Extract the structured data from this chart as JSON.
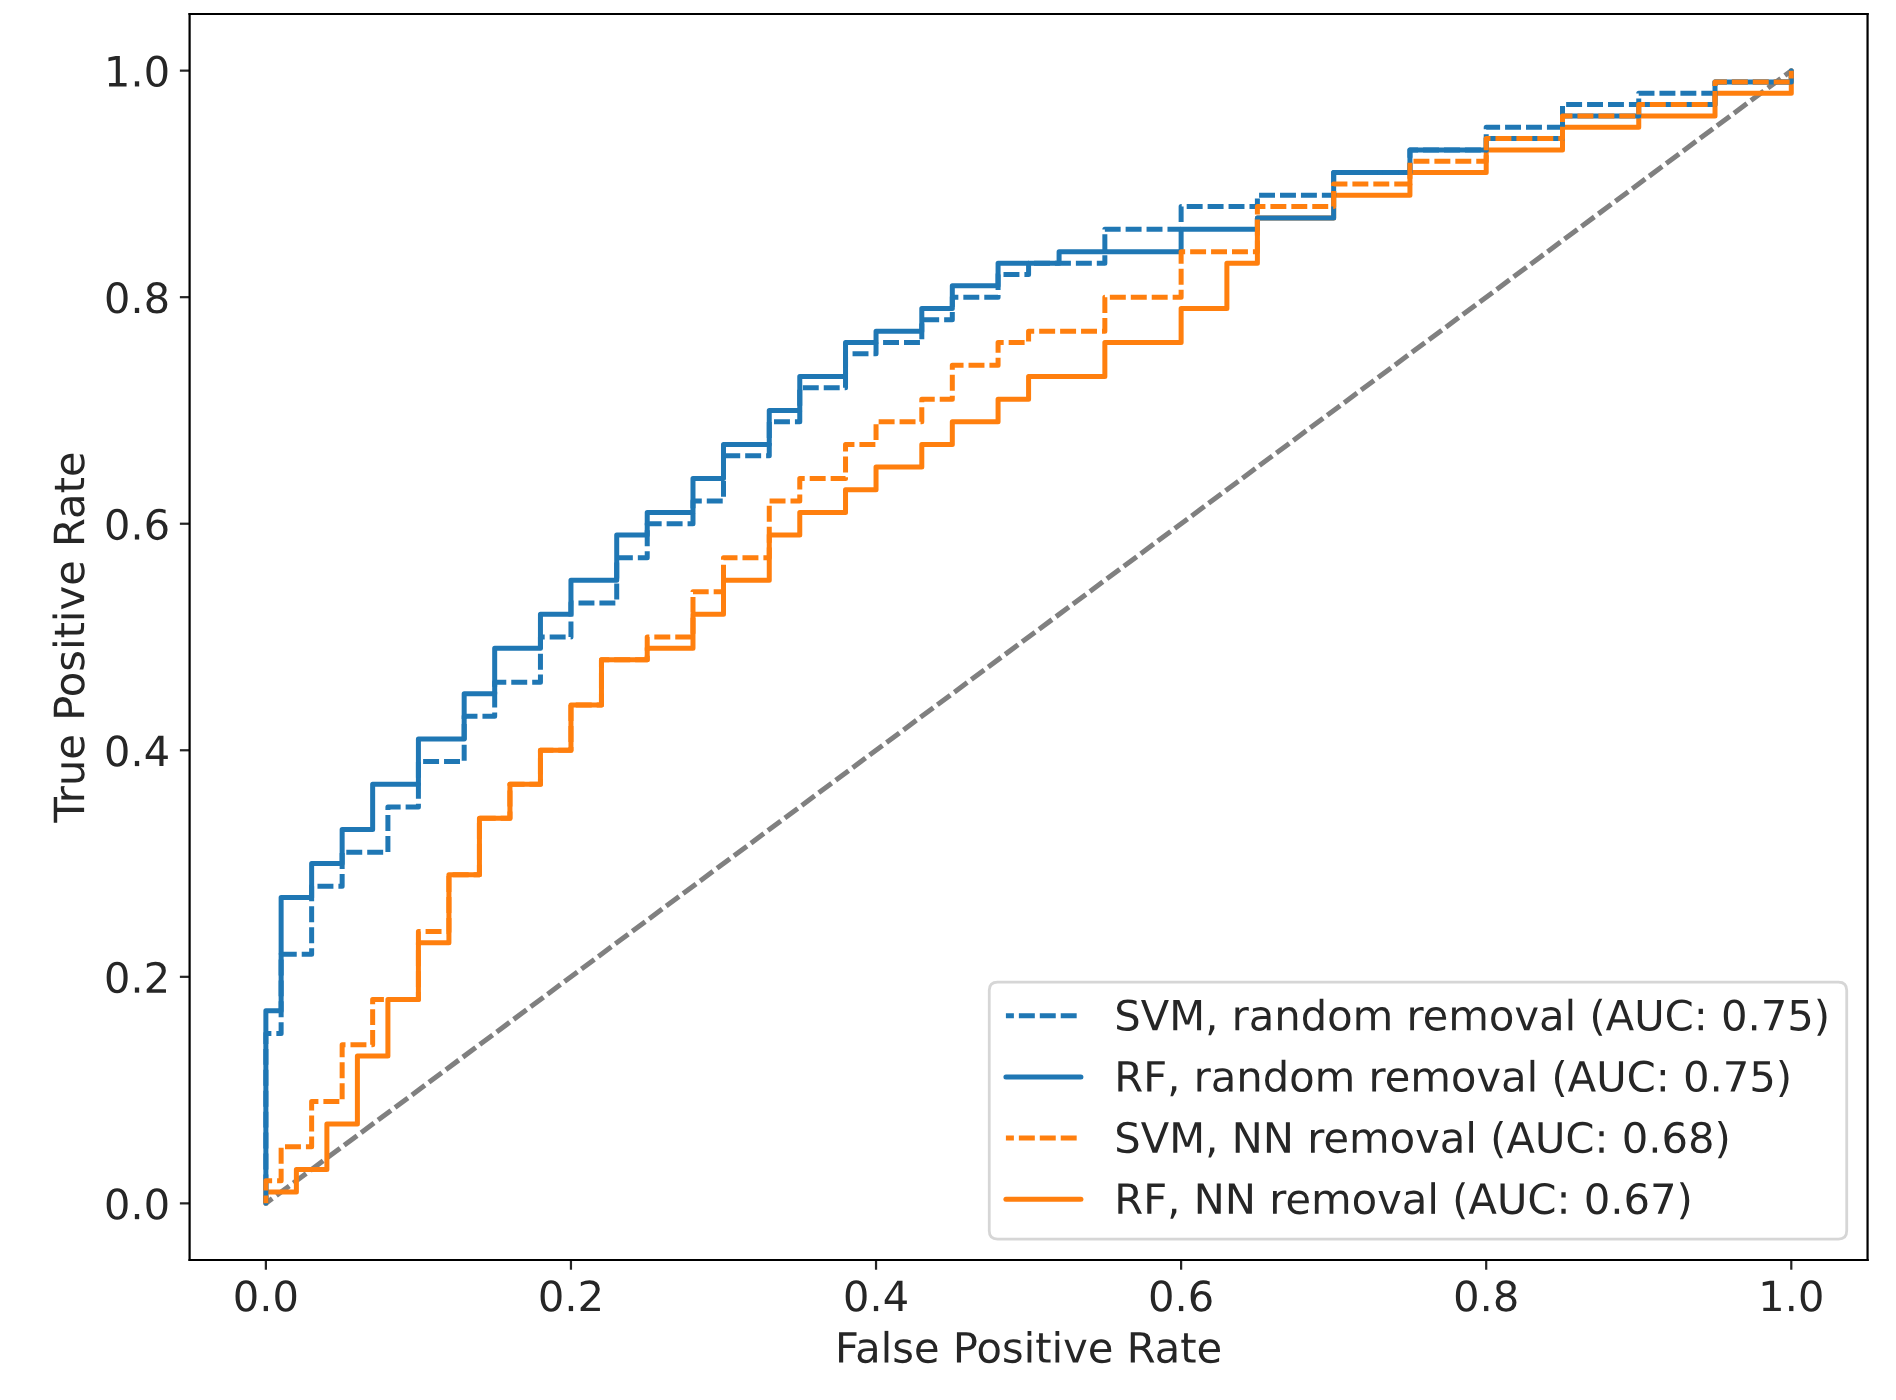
{
  "chart_data": {
    "type": "step",
    "xlabel": "False Positive Rate",
    "ylabel": "True Positive Rate",
    "xlim": [
      -0.05,
      1.05
    ],
    "ylim": [
      -0.05,
      1.05
    ],
    "xticks": [
      {
        "value": 0,
        "label": "0.0"
      },
      {
        "value": 0.2,
        "label": "0.2"
      },
      {
        "value": 0.4,
        "label": "0.4"
      },
      {
        "value": 0.6,
        "label": "0.6"
      },
      {
        "value": 0.8,
        "label": "0.8"
      },
      {
        "value": 1,
        "label": "1.0"
      }
    ],
    "yticks": [
      {
        "value": 0,
        "label": "0.0"
      },
      {
        "value": 0.2,
        "label": "0.2"
      },
      {
        "value": 0.4,
        "label": "0.4"
      },
      {
        "value": 0.6,
        "label": "0.6"
      },
      {
        "value": 0.8,
        "label": "0.8"
      },
      {
        "value": 1,
        "label": "1.0"
      }
    ],
    "grid": false,
    "legend": "bottom right",
    "series": [
      {
        "name": "SVM, random removal (AUC: 0.75)",
        "color": "#1f77b4",
        "line_style": "dashed",
        "x": [
          0,
          0,
          0.01,
          0.03,
          0.05,
          0.08,
          0.1,
          0.13,
          0.15,
          0.18,
          0.2,
          0.23,
          0.25,
          0.28,
          0.3,
          0.33,
          0.35,
          0.38,
          0.4,
          0.43,
          0.45,
          0.48,
          0.5,
          0.55,
          0.6,
          0.65,
          0.7,
          0.75,
          0.8,
          0.85,
          0.9,
          0.95,
          1
        ],
        "values": [
          0,
          0.15,
          0.22,
          0.28,
          0.31,
          0.35,
          0.39,
          0.43,
          0.46,
          0.5,
          0.53,
          0.57,
          0.6,
          0.62,
          0.66,
          0.69,
          0.72,
          0.75,
          0.76,
          0.78,
          0.8,
          0.82,
          0.83,
          0.86,
          0.88,
          0.89,
          0.91,
          0.93,
          0.95,
          0.97,
          0.98,
          0.99,
          1
        ]
      },
      {
        "name": "RF, random removal (AUC: 0.75)",
        "color": "#1f77b4",
        "line_style": "solid",
        "x": [
          0,
          0,
          0.01,
          0.03,
          0.05,
          0.07,
          0.1,
          0.13,
          0.15,
          0.18,
          0.2,
          0.23,
          0.25,
          0.28,
          0.3,
          0.33,
          0.35,
          0.38,
          0.4,
          0.43,
          0.45,
          0.48,
          0.52,
          0.55,
          0.6,
          0.65,
          0.7,
          0.75,
          0.8,
          0.85,
          0.9,
          0.95,
          1
        ],
        "values": [
          0,
          0.17,
          0.27,
          0.3,
          0.33,
          0.37,
          0.41,
          0.45,
          0.49,
          0.52,
          0.55,
          0.59,
          0.61,
          0.64,
          0.67,
          0.7,
          0.73,
          0.76,
          0.77,
          0.79,
          0.81,
          0.83,
          0.84,
          0.84,
          0.86,
          0.87,
          0.91,
          0.93,
          0.94,
          0.96,
          0.97,
          0.99,
          1
        ]
      },
      {
        "name": "SVM, NN removal (AUC: 0.68)",
        "color": "#ff7f0e",
        "line_style": "dashed",
        "x": [
          0,
          0,
          0.01,
          0.03,
          0.05,
          0.07,
          0.1,
          0.12,
          0.14,
          0.16,
          0.18,
          0.2,
          0.22,
          0.25,
          0.28,
          0.3,
          0.33,
          0.35,
          0.38,
          0.4,
          0.43,
          0.45,
          0.48,
          0.5,
          0.55,
          0.6,
          0.65,
          0.7,
          0.75,
          0.8,
          0.85,
          0.9,
          0.95,
          1
        ],
        "values": [
          0,
          0.02,
          0.05,
          0.09,
          0.14,
          0.18,
          0.24,
          0.29,
          0.34,
          0.37,
          0.4,
          0.44,
          0.48,
          0.5,
          0.54,
          0.57,
          0.62,
          0.64,
          0.67,
          0.69,
          0.71,
          0.74,
          0.76,
          0.77,
          0.8,
          0.84,
          0.88,
          0.9,
          0.92,
          0.94,
          0.96,
          0.97,
          0.99,
          1
        ]
      },
      {
        "name": "RF, NN removal (AUC: 0.67)",
        "color": "#ff7f0e",
        "line_style": "solid",
        "x": [
          0,
          0,
          0.02,
          0.04,
          0.06,
          0.08,
          0.1,
          0.12,
          0.14,
          0.16,
          0.18,
          0.2,
          0.22,
          0.25,
          0.28,
          0.3,
          0.33,
          0.35,
          0.38,
          0.4,
          0.43,
          0.45,
          0.48,
          0.5,
          0.55,
          0.6,
          0.63,
          0.65,
          0.7,
          0.75,
          0.8,
          0.85,
          0.9,
          0.95,
          1
        ],
        "values": [
          0,
          0.01,
          0.03,
          0.07,
          0.13,
          0.18,
          0.23,
          0.29,
          0.34,
          0.37,
          0.4,
          0.44,
          0.48,
          0.49,
          0.52,
          0.55,
          0.59,
          0.61,
          0.63,
          0.65,
          0.67,
          0.69,
          0.71,
          0.73,
          0.76,
          0.79,
          0.83,
          0.87,
          0.89,
          0.91,
          0.93,
          0.95,
          0.96,
          0.98,
          1
        ]
      },
      {
        "type": "line",
        "color": "#808080",
        "line_style": "dashed",
        "x": [
          0,
          1
        ],
        "values": [
          0,
          1
        ]
      }
    ]
  }
}
